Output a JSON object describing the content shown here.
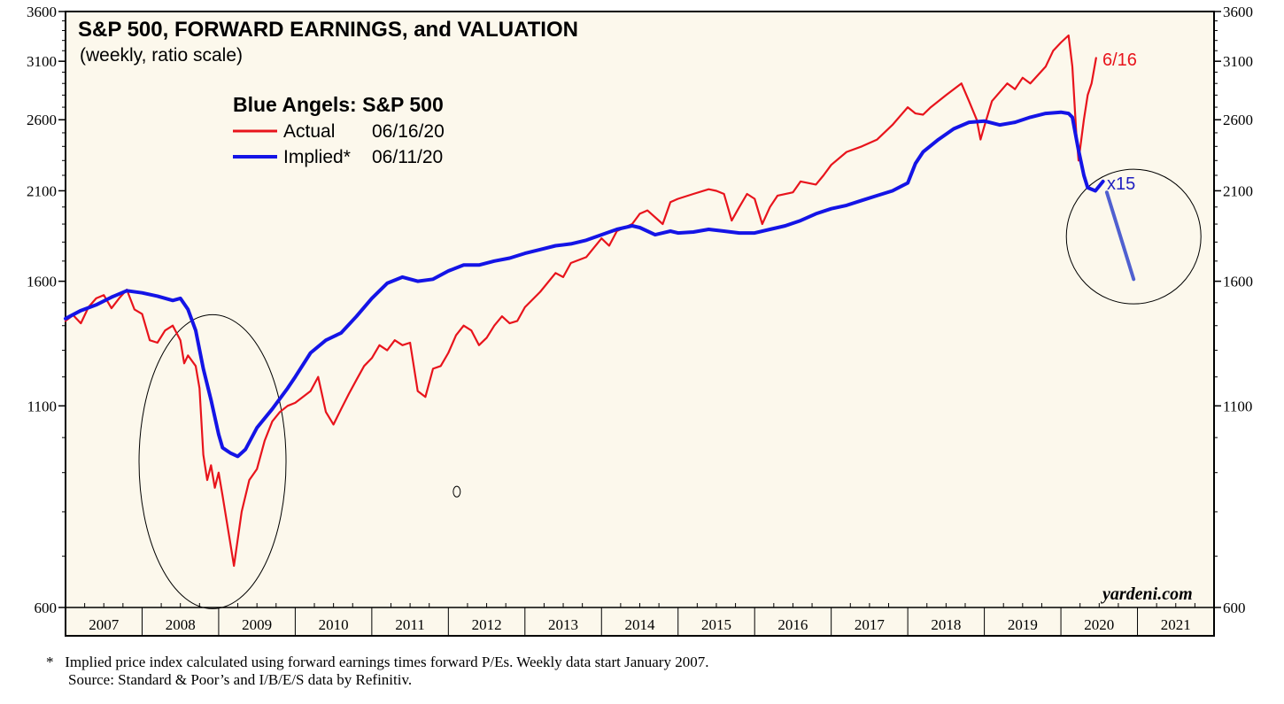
{
  "chart_data": {
    "type": "line",
    "title": "S&P 500, FORWARD EARNINGS, and VALUATION",
    "subtitle": "(weekly, ratio scale)",
    "y_scale": "log",
    "ylim": [
      600,
      3600
    ],
    "y_ticks": [
      "600",
      "1100",
      "1600",
      "2100",
      "2600",
      "3100",
      "3600"
    ],
    "y_tick_values": [
      600,
      1100,
      1600,
      2100,
      2600,
      3100,
      3600
    ],
    "x_range": [
      2007.0,
      2022.0
    ],
    "x_ticks": [
      "2007",
      "2008",
      "2009",
      "2010",
      "2011",
      "2012",
      "2013",
      "2014",
      "2015",
      "2016",
      "2017",
      "2018",
      "2019",
      "2020",
      "2021"
    ],
    "grid": false,
    "legend": {
      "title": "Blue Angels: S&P 500",
      "placement": "top-left",
      "entries": [
        {
          "label": "Actual",
          "date": "06/16/20",
          "color": "#e8141c"
        },
        {
          "label": "Implied*",
          "date": "06/11/20",
          "color": "#1414e6"
        }
      ]
    },
    "annotations": {
      "actual_end_label": "6/16",
      "multiplier_label": "x15"
    },
    "series": [
      {
        "name": "Actual",
        "color": "#e8141c",
        "points": [
          [
            2007.0,
            1420
          ],
          [
            2007.1,
            1445
          ],
          [
            2007.2,
            1410
          ],
          [
            2007.3,
            1480
          ],
          [
            2007.4,
            1520
          ],
          [
            2007.5,
            1535
          ],
          [
            2007.6,
            1475
          ],
          [
            2007.7,
            1520
          ],
          [
            2007.8,
            1560
          ],
          [
            2007.9,
            1470
          ],
          [
            2008.0,
            1450
          ],
          [
            2008.1,
            1340
          ],
          [
            2008.2,
            1330
          ],
          [
            2008.3,
            1380
          ],
          [
            2008.4,
            1400
          ],
          [
            2008.5,
            1340
          ],
          [
            2008.55,
            1250
          ],
          [
            2008.6,
            1280
          ],
          [
            2008.7,
            1240
          ],
          [
            2008.75,
            1160
          ],
          [
            2008.8,
            950
          ],
          [
            2008.85,
            880
          ],
          [
            2008.9,
            920
          ],
          [
            2008.95,
            860
          ],
          [
            2009.0,
            900
          ],
          [
            2009.05,
            840
          ],
          [
            2009.15,
            730
          ],
          [
            2009.2,
            680
          ],
          [
            2009.3,
            800
          ],
          [
            2009.4,
            880
          ],
          [
            2009.5,
            910
          ],
          [
            2009.6,
            990
          ],
          [
            2009.7,
            1050
          ],
          [
            2009.8,
            1080
          ],
          [
            2009.9,
            1100
          ],
          [
            2010.0,
            1110
          ],
          [
            2010.2,
            1150
          ],
          [
            2010.3,
            1200
          ],
          [
            2010.4,
            1080
          ],
          [
            2010.5,
            1040
          ],
          [
            2010.6,
            1090
          ],
          [
            2010.7,
            1140
          ],
          [
            2010.8,
            1190
          ],
          [
            2010.9,
            1240
          ],
          [
            2011.0,
            1270
          ],
          [
            2011.1,
            1320
          ],
          [
            2011.2,
            1300
          ],
          [
            2011.3,
            1340
          ],
          [
            2011.4,
            1320
          ],
          [
            2011.5,
            1330
          ],
          [
            2011.6,
            1150
          ],
          [
            2011.7,
            1130
          ],
          [
            2011.8,
            1230
          ],
          [
            2011.9,
            1240
          ],
          [
            2012.0,
            1290
          ],
          [
            2012.1,
            1360
          ],
          [
            2012.2,
            1400
          ],
          [
            2012.3,
            1380
          ],
          [
            2012.4,
            1320
          ],
          [
            2012.5,
            1350
          ],
          [
            2012.6,
            1400
          ],
          [
            2012.7,
            1440
          ],
          [
            2012.8,
            1410
          ],
          [
            2012.9,
            1420
          ],
          [
            2013.0,
            1480
          ],
          [
            2013.2,
            1550
          ],
          [
            2013.4,
            1640
          ],
          [
            2013.5,
            1620
          ],
          [
            2013.6,
            1690
          ],
          [
            2013.8,
            1720
          ],
          [
            2014.0,
            1820
          ],
          [
            2014.1,
            1780
          ],
          [
            2014.2,
            1860
          ],
          [
            2014.4,
            1900
          ],
          [
            2014.5,
            1960
          ],
          [
            2014.6,
            1980
          ],
          [
            2014.8,
            1900
          ],
          [
            2014.9,
            2030
          ],
          [
            2015.0,
            2050
          ],
          [
            2015.2,
            2080
          ],
          [
            2015.4,
            2110
          ],
          [
            2015.5,
            2100
          ],
          [
            2015.6,
            2080
          ],
          [
            2015.7,
            1920
          ],
          [
            2015.8,
            2000
          ],
          [
            2015.9,
            2080
          ],
          [
            2016.0,
            2050
          ],
          [
            2016.1,
            1900
          ],
          [
            2016.2,
            2000
          ],
          [
            2016.3,
            2070
          ],
          [
            2016.5,
            2090
          ],
          [
            2016.6,
            2160
          ],
          [
            2016.8,
            2140
          ],
          [
            2016.9,
            2200
          ],
          [
            2017.0,
            2270
          ],
          [
            2017.2,
            2360
          ],
          [
            2017.4,
            2400
          ],
          [
            2017.6,
            2450
          ],
          [
            2017.8,
            2560
          ],
          [
            2018.0,
            2700
          ],
          [
            2018.1,
            2650
          ],
          [
            2018.2,
            2640
          ],
          [
            2018.3,
            2700
          ],
          [
            2018.5,
            2800
          ],
          [
            2018.7,
            2900
          ],
          [
            2018.8,
            2750
          ],
          [
            2018.9,
            2600
          ],
          [
            2018.95,
            2450
          ],
          [
            2019.0,
            2550
          ],
          [
            2019.1,
            2750
          ],
          [
            2019.3,
            2900
          ],
          [
            2019.4,
            2850
          ],
          [
            2019.5,
            2950
          ],
          [
            2019.6,
            2900
          ],
          [
            2019.8,
            3050
          ],
          [
            2019.9,
            3200
          ],
          [
            2020.0,
            3280
          ],
          [
            2020.1,
            3350
          ],
          [
            2020.15,
            3050
          ],
          [
            2020.2,
            2500
          ],
          [
            2020.23,
            2300
          ],
          [
            2020.3,
            2600
          ],
          [
            2020.35,
            2800
          ],
          [
            2020.4,
            2900
          ],
          [
            2020.46,
            3130
          ]
        ]
      },
      {
        "name": "Implied*",
        "color": "#1414e6",
        "points": [
          [
            2007.0,
            1430
          ],
          [
            2007.2,
            1465
          ],
          [
            2007.4,
            1490
          ],
          [
            2007.6,
            1525
          ],
          [
            2007.8,
            1555
          ],
          [
            2008.0,
            1545
          ],
          [
            2008.2,
            1530
          ],
          [
            2008.4,
            1510
          ],
          [
            2008.5,
            1520
          ],
          [
            2008.6,
            1470
          ],
          [
            2008.7,
            1380
          ],
          [
            2008.8,
            1230
          ],
          [
            2008.9,
            1120
          ],
          [
            2009.0,
            1010
          ],
          [
            2009.05,
            970
          ],
          [
            2009.15,
            955
          ],
          [
            2009.25,
            945
          ],
          [
            2009.35,
            965
          ],
          [
            2009.5,
            1030
          ],
          [
            2009.7,
            1090
          ],
          [
            2009.9,
            1160
          ],
          [
            2010.0,
            1200
          ],
          [
            2010.2,
            1290
          ],
          [
            2010.4,
            1340
          ],
          [
            2010.6,
            1370
          ],
          [
            2010.8,
            1440
          ],
          [
            2011.0,
            1520
          ],
          [
            2011.2,
            1590
          ],
          [
            2011.4,
            1620
          ],
          [
            2011.6,
            1600
          ],
          [
            2011.8,
            1610
          ],
          [
            2012.0,
            1650
          ],
          [
            2012.2,
            1680
          ],
          [
            2012.4,
            1680
          ],
          [
            2012.6,
            1700
          ],
          [
            2012.8,
            1715
          ],
          [
            2013.0,
            1740
          ],
          [
            2013.2,
            1760
          ],
          [
            2013.4,
            1780
          ],
          [
            2013.6,
            1790
          ],
          [
            2013.8,
            1810
          ],
          [
            2014.0,
            1840
          ],
          [
            2014.2,
            1870
          ],
          [
            2014.4,
            1890
          ],
          [
            2014.5,
            1880
          ],
          [
            2014.6,
            1860
          ],
          [
            2014.7,
            1840
          ],
          [
            2014.8,
            1850
          ],
          [
            2014.9,
            1860
          ],
          [
            2015.0,
            1850
          ],
          [
            2015.2,
            1855
          ],
          [
            2015.4,
            1870
          ],
          [
            2015.6,
            1860
          ],
          [
            2015.8,
            1850
          ],
          [
            2016.0,
            1850
          ],
          [
            2016.2,
            1870
          ],
          [
            2016.4,
            1890
          ],
          [
            2016.6,
            1920
          ],
          [
            2016.8,
            1960
          ],
          [
            2017.0,
            1990
          ],
          [
            2017.2,
            2010
          ],
          [
            2017.4,
            2040
          ],
          [
            2017.6,
            2070
          ],
          [
            2017.8,
            2100
          ],
          [
            2018.0,
            2150
          ],
          [
            2018.1,
            2280
          ],
          [
            2018.2,
            2360
          ],
          [
            2018.4,
            2450
          ],
          [
            2018.6,
            2530
          ],
          [
            2018.8,
            2580
          ],
          [
            2019.0,
            2590
          ],
          [
            2019.2,
            2560
          ],
          [
            2019.4,
            2580
          ],
          [
            2019.6,
            2620
          ],
          [
            2019.8,
            2650
          ],
          [
            2020.0,
            2660
          ],
          [
            2020.1,
            2650
          ],
          [
            2020.15,
            2620
          ],
          [
            2020.22,
            2400
          ],
          [
            2020.3,
            2200
          ],
          [
            2020.35,
            2120
          ],
          [
            2020.45,
            2100
          ],
          [
            2020.55,
            2160
          ]
        ]
      },
      {
        "name": "x15 projection",
        "color": "#5060d0",
        "points": [
          [
            2020.6,
            2090
          ],
          [
            2020.95,
            1610
          ]
        ]
      }
    ]
  },
  "brand": "yardeni.com",
  "footnote": {
    "line1": "*   Implied price index calculated using forward earnings times forward P/Es. Weekly data start January 2007.",
    "line2": "Source: Standard & Poor’s and I/B/E/S data by Refinitiv."
  }
}
